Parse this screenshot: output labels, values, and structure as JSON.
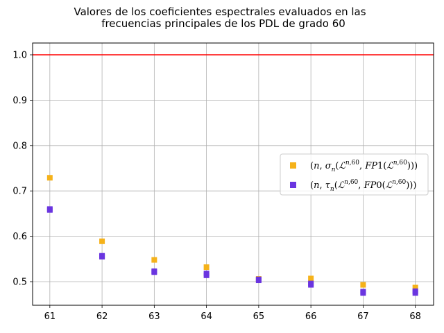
{
  "chart_data": {
    "type": "scatter",
    "title_lines": [
      "Valores de los coeficientes espectrales evaluados en las",
      "frecuencias principales de los PDL de grado 60"
    ],
    "xlabel": "",
    "ylabel": "",
    "x_ticks": [
      61,
      62,
      63,
      64,
      65,
      66,
      67,
      68
    ],
    "y_ticks": [
      0.5,
      0.6,
      0.7,
      0.8,
      0.9,
      1.0
    ],
    "y_tick_labels": [
      "0.5",
      "0.6",
      "0.7",
      "0.8",
      "0.9",
      "1.0"
    ],
    "xlim": [
      60.67,
      68.35
    ],
    "ylim": [
      0.448,
      1.026
    ],
    "grid": true,
    "legend_position": "center-right",
    "reference_line": {
      "y": 1.0,
      "color": "#ff0000"
    },
    "series": [
      {
        "name": "(n, σ_n(ℒ^{n,60}, FP1(ℒ^{n,60})))",
        "color": "#f5b21a",
        "marker": "square",
        "points": [
          {
            "x": 61,
            "y": 0.729
          },
          {
            "x": 62,
            "y": 0.589
          },
          {
            "x": 63,
            "y": 0.548
          },
          {
            "x": 64,
            "y": 0.532
          },
          {
            "x": 65,
            "y": 0.506
          },
          {
            "x": 66,
            "y": 0.507
          },
          {
            "x": 67,
            "y": 0.493
          },
          {
            "x": 68,
            "y": 0.487
          }
        ]
      },
      {
        "name": "(n, τ_n(ℒ^{n,60}, FP0(ℒ^{n,60})))",
        "color": "#6a35e0",
        "marker": "square",
        "points": [
          {
            "x": 61,
            "y": 0.66
          },
          {
            "x": 61,
            "y": 0.658
          },
          {
            "x": 62,
            "y": 0.557
          },
          {
            "x": 62,
            "y": 0.555
          },
          {
            "x": 63,
            "y": 0.523
          },
          {
            "x": 63,
            "y": 0.521
          },
          {
            "x": 64,
            "y": 0.518
          },
          {
            "x": 64,
            "y": 0.514
          },
          {
            "x": 65,
            "y": 0.505
          },
          {
            "x": 65,
            "y": 0.503
          },
          {
            "x": 66,
            "y": 0.496
          },
          {
            "x": 66,
            "y": 0.493
          },
          {
            "x": 67,
            "y": 0.478
          },
          {
            "x": 67,
            "y": 0.475
          },
          {
            "x": 68,
            "y": 0.479
          },
          {
            "x": 68,
            "y": 0.475
          }
        ]
      }
    ]
  }
}
